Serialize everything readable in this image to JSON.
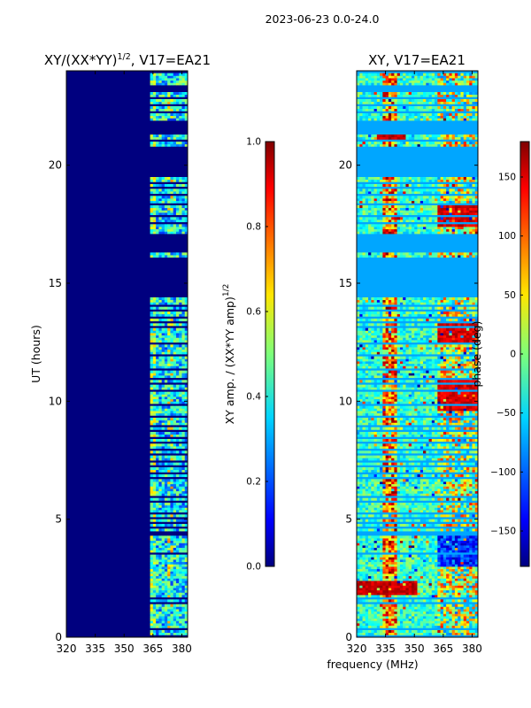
{
  "suptitle": "2023-06-23 0.0-24.0",
  "chart_data": [
    {
      "type": "heatmap",
      "title_main": "XY/(XX*YY)",
      "title_exp": "1/2",
      "title_tail": ", V17=EA21",
      "xlabel": "",
      "ylabel": "UT (hours)",
      "xlim": [
        320,
        383
      ],
      "ylim": [
        0,
        24
      ],
      "xticks": [
        "320",
        "335",
        "350",
        "365",
        "380"
      ],
      "xtick_values": [
        320,
        335,
        350,
        365,
        380
      ],
      "yticks": [
        "0",
        "5",
        "10",
        "15",
        "20"
      ],
      "ytick_values": [
        0,
        5,
        10,
        15,
        20
      ],
      "colorbar": {
        "label_main": "XY amp. / (XX*YY amp)",
        "label_exp": "1/2",
        "range": [
          0.0,
          1.0
        ],
        "ticks": [
          "0.0",
          "0.2",
          "0.4",
          "0.6",
          "0.8",
          "1.0"
        ],
        "tick_values": [
          0.0,
          0.2,
          0.4,
          0.6,
          0.8,
          1.0
        ]
      }
    },
    {
      "type": "heatmap",
      "title": "XY, V17=EA21",
      "xlabel": "frequency (MHz)",
      "ylabel": "",
      "xlim": [
        320,
        383
      ],
      "ylim": [
        0,
        24
      ],
      "xticks": [
        "320",
        "335",
        "350",
        "365",
        "380"
      ],
      "xtick_values": [
        320,
        335,
        350,
        365,
        380
      ],
      "yticks": [
        "0",
        "5",
        "10",
        "15",
        "20"
      ],
      "ytick_values": [
        0,
        5,
        10,
        15,
        20
      ],
      "colorbar": {
        "label": "phase (deg)",
        "range": [
          -180,
          180
        ],
        "ticks": [
          "−150",
          "−100",
          "−50",
          "0",
          "50",
          "100",
          "150"
        ],
        "tick_values": [
          -150,
          -100,
          -50,
          0,
          50,
          100,
          150
        ]
      }
    }
  ],
  "flagged_time_ranges_hours": [
    [
      0.05,
      0.12
    ],
    [
      0.35,
      0.42
    ],
    [
      1.4,
      1.47
    ],
    [
      1.6,
      1.67
    ],
    [
      3.48,
      3.56
    ],
    [
      4.35,
      4.5
    ],
    [
      4.65,
      4.7
    ],
    [
      4.85,
      4.92
    ],
    [
      5.05,
      5.1
    ],
    [
      5.25,
      5.3
    ],
    [
      5.5,
      5.55
    ],
    [
      5.75,
      5.8
    ],
    [
      5.95,
      6.02
    ],
    [
      6.7,
      6.78
    ],
    [
      6.95,
      7.0
    ],
    [
      7.2,
      7.25
    ],
    [
      7.45,
      7.5
    ],
    [
      7.7,
      7.75
    ],
    [
      7.95,
      8.02
    ],
    [
      8.2,
      8.25
    ],
    [
      8.45,
      8.5
    ],
    [
      8.7,
      8.75
    ],
    [
      8.95,
      9.02
    ],
    [
      9.3,
      9.38
    ],
    [
      9.85,
      9.92
    ],
    [
      10.4,
      10.46
    ],
    [
      10.7,
      10.76
    ],
    [
      10.95,
      11.0
    ],
    [
      11.3,
      11.36
    ],
    [
      11.95,
      12.0
    ],
    [
      12.45,
      12.52
    ],
    [
      13.15,
      13.2
    ],
    [
      13.35,
      13.4
    ],
    [
      13.55,
      13.62
    ],
    [
      13.8,
      13.86
    ],
    [
      14.05,
      14.12
    ],
    [
      14.45,
      16.15
    ],
    [
      16.3,
      17.15
    ],
    [
      17.55,
      17.6
    ],
    [
      17.85,
      17.9
    ],
    [
      18.1,
      18.15
    ],
    [
      18.35,
      18.4
    ],
    [
      18.75,
      18.82
    ],
    [
      19.0,
      19.06
    ],
    [
      19.25,
      19.3
    ],
    [
      19.55,
      20.75
    ],
    [
      21.0,
      21.06
    ],
    [
      21.35,
      21.9
    ],
    [
      22.25,
      22.3
    ],
    [
      22.55,
      22.6
    ],
    [
      22.85,
      22.9
    ],
    [
      23.15,
      23.45
    ],
    [
      23.95,
      24.0
    ]
  ]
}
